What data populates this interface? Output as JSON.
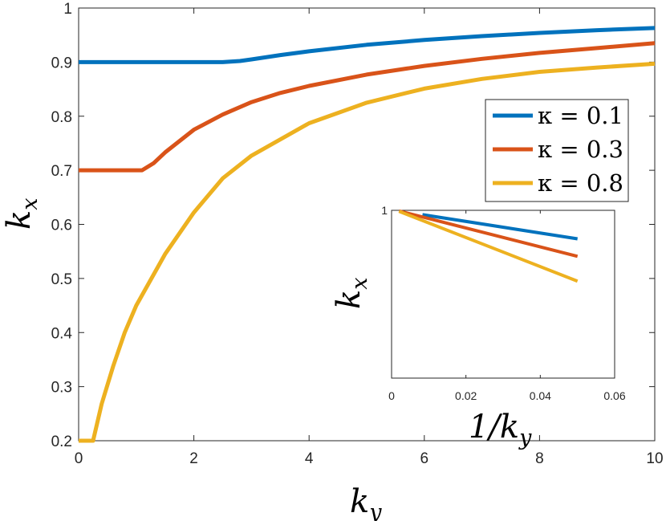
{
  "chart_data": [
    {
      "type": "line",
      "title": "",
      "xlabel": {
        "base": "k",
        "sub": "y"
      },
      "ylabel": {
        "base": "k",
        "sub": "x"
      },
      "xlim": [
        0,
        10
      ],
      "ylim": [
        0.2,
        1
      ],
      "xticks": [
        0,
        2,
        4,
        6,
        8,
        10
      ],
      "xtick_labels": [
        "0",
        "2",
        "4",
        "6",
        "8",
        "10"
      ],
      "yticks": [
        0.2,
        0.3,
        0.4,
        0.5,
        0.6,
        0.7,
        0.8,
        0.9,
        1
      ],
      "ytick_labels": [
        "0.2",
        "0.3",
        "0.4",
        "0.5",
        "0.6",
        "0.7",
        "0.8",
        "0.9",
        "1"
      ],
      "grid": false,
      "legend_position": "upper-right",
      "series": [
        {
          "name": "κ = 0.1",
          "color": "#0072BD",
          "x": [
            0,
            0.5,
            1,
            1.5,
            2,
            2.5,
            2.8,
            3.0,
            3.5,
            4,
            5,
            6,
            7,
            8,
            9,
            10
          ],
          "y": [
            0.9,
            0.9,
            0.9,
            0.9,
            0.9,
            0.9,
            0.902,
            0.905,
            0.913,
            0.92,
            0.932,
            0.941,
            0.948,
            0.954,
            0.959,
            0.963
          ]
        },
        {
          "name": "κ = 0.3",
          "color": "#D95319",
          "x": [
            0,
            0.5,
            1.1,
            1.3,
            1.5,
            2,
            2.5,
            3,
            3.5,
            4,
            5,
            6,
            7,
            8,
            9,
            10
          ],
          "y": [
            0.7,
            0.7,
            0.7,
            0.713,
            0.733,
            0.775,
            0.803,
            0.826,
            0.843,
            0.856,
            0.877,
            0.893,
            0.906,
            0.917,
            0.926,
            0.935
          ]
        },
        {
          "name": "κ = 0.8",
          "color": "#EDB120",
          "x": [
            0,
            0.25,
            0.4,
            0.6,
            0.8,
            1,
            1.5,
            2,
            2.5,
            3,
            4,
            5,
            6,
            7,
            8,
            9,
            10
          ],
          "y": [
            0.2,
            0.2,
            0.268,
            0.338,
            0.4,
            0.45,
            0.545,
            0.622,
            0.685,
            0.727,
            0.787,
            0.825,
            0.851,
            0.869,
            0.882,
            0.89,
            0.897
          ]
        }
      ]
    },
    {
      "type": "line",
      "title": "",
      "xlabel": {
        "base": "1/k",
        "sub": "y"
      },
      "ylabel": {
        "base": "k",
        "sub": "x"
      },
      "xlim": [
        0,
        0.06
      ],
      "ylim": [
        0.75,
        1
      ],
      "xticks": [
        0,
        0.02,
        0.04,
        0.06
      ],
      "xtick_labels": [
        "0",
        "0.02",
        "0.04",
        "0.06"
      ],
      "yticks": [
        1
      ],
      "ytick_labels": [
        "1"
      ],
      "grid": false,
      "series": [
        {
          "name": "κ = 0.1",
          "color": "#0072BD",
          "x": [
            0.0083,
            0.05
          ],
          "y": [
            0.9935,
            0.9575
          ]
        },
        {
          "name": "κ = 0.3",
          "color": "#D95319",
          "x": [
            0.002,
            0.05
          ],
          "y": [
            0.999,
            0.9315
          ]
        },
        {
          "name": "κ = 0.8",
          "color": "#EDB120",
          "x": [
            0.002,
            0.05
          ],
          "y": [
            0.9985,
            0.8945
          ]
        }
      ]
    }
  ]
}
